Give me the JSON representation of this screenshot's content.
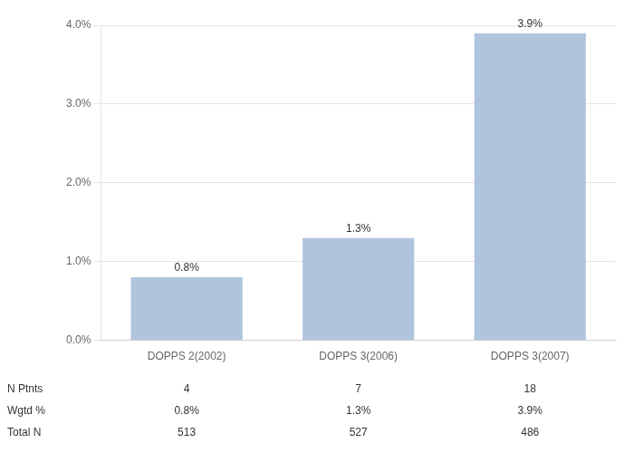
{
  "chart_data": {
    "type": "bar",
    "categories": [
      "DOPPS 2(2002)",
      "DOPPS 3(2006)",
      "DOPPS 3(2007)"
    ],
    "values": [
      0.8,
      1.3,
      3.9
    ],
    "value_labels": [
      "0.8%",
      "1.3%",
      "3.9%"
    ],
    "data_labels": true,
    "color": "#b0c4de",
    "ylim": [
      0,
      4.0
    ],
    "yticks": [
      {
        "value": 0.0,
        "label": "0.0%"
      },
      {
        "value": 1.0,
        "label": "1.0%"
      },
      {
        "value": 2.0,
        "label": "2.0%"
      },
      {
        "value": 3.0,
        "label": "3.0%"
      },
      {
        "value": 4.0,
        "label": "4.0%"
      }
    ],
    "grid": true,
    "table": [
      {
        "label": "N Ptnts",
        "values": [
          4,
          7,
          18
        ]
      },
      {
        "label": "Wgtd %",
        "values": [
          0.8,
          1.3,
          3.9
        ],
        "value_labels": [
          "0.8%",
          "1.3%",
          "3.9%"
        ]
      },
      {
        "label": "Total N",
        "values": [
          513,
          527,
          486
        ]
      }
    ]
  }
}
